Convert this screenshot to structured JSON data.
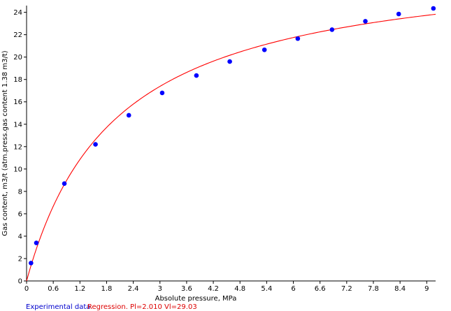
{
  "chart_data": {
    "type": "scatter",
    "xlabel": "Absolute pressure, MPa",
    "ylabel": "Gas content, m3/t (atm.press.gas content 1.38 m3/t)",
    "xlim": [
      0,
      9.2
    ],
    "ylim": [
      0,
      24.6
    ],
    "x_ticks": [
      "0",
      "0.6",
      "1.2",
      "1.8",
      "2.4",
      "3",
      "3.6",
      "4.2",
      "4.8",
      "5.4",
      "6",
      "6.6",
      "7.2",
      "7.8",
      "8.4",
      "9"
    ],
    "y_ticks": [
      "0",
      "2",
      "4",
      "6",
      "8",
      "10",
      "12",
      "14",
      "16",
      "18",
      "20",
      "22",
      "24"
    ],
    "grid": false,
    "legend_position": "bottom",
    "series": [
      {
        "name": "Experimental data",
        "kind": "points",
        "color": "#0000ff",
        "x": [
          0.1,
          0.22,
          0.85,
          1.55,
          2.3,
          3.05,
          3.82,
          4.57,
          5.35,
          6.1,
          6.87,
          7.62,
          8.37,
          9.15
        ],
        "y": [
          1.6,
          3.4,
          8.7,
          12.2,
          14.8,
          16.8,
          18.35,
          19.6,
          20.65,
          21.65,
          22.45,
          23.2,
          23.85,
          24.35
        ]
      },
      {
        "name": "Regression. Pl=2.010 Vl=29.03",
        "kind": "line",
        "color": "#ff0000",
        "model": "langmuir",
        "Pl": 2.01,
        "Vl": 29.03
      }
    ]
  }
}
